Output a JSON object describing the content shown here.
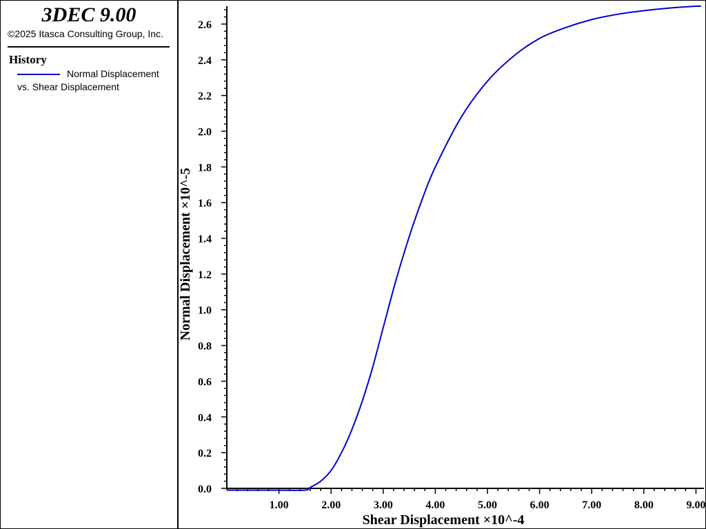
{
  "app": {
    "title": "3DEC 9.00",
    "copyright": "©2025 Itasca Consulting Group, Inc."
  },
  "legend": {
    "heading": "History",
    "entries": [
      {
        "line1": "Normal Displacement",
        "line2": "vs. Shear Displacement",
        "color": "#0000cc"
      }
    ]
  },
  "chart_data": {
    "type": "line",
    "title": "",
    "xlabel": "Shear Displacement ×10^-4",
    "ylabel": "Normal Displacement ×10^-5",
    "xlim": [
      0,
      9.1
    ],
    "ylim": [
      0,
      2.7
    ],
    "x_ticks": [
      "1.00",
      "2.00",
      "3.00",
      "4.00",
      "5.00",
      "6.00",
      "7.00",
      "8.00",
      "9.00"
    ],
    "y_ticks": [
      "0.0",
      "0.2",
      "0.4",
      "0.6",
      "0.8",
      "1.0",
      "1.2",
      "1.4",
      "1.6",
      "1.8",
      "2.0",
      "2.2",
      "2.4",
      "2.6"
    ],
    "grid": false,
    "legend_position": "left panel",
    "series": [
      {
        "name": "Normal Displacement vs. Shear Displacement",
        "color": "#0000cc",
        "x": [
          0.0,
          0.5,
          1.0,
          1.5,
          1.6,
          1.8,
          2.0,
          2.2,
          2.4,
          2.6,
          2.8,
          3.0,
          3.25,
          3.5,
          3.75,
          4.0,
          4.5,
          5.0,
          5.5,
          6.0,
          6.5,
          7.0,
          7.5,
          8.0,
          8.5,
          9.0,
          9.1
        ],
        "y": [
          -0.01,
          -0.01,
          -0.01,
          -0.01,
          0.005,
          0.04,
          0.1,
          0.2,
          0.33,
          0.49,
          0.68,
          0.9,
          1.17,
          1.41,
          1.62,
          1.8,
          2.08,
          2.28,
          2.42,
          2.52,
          2.58,
          2.625,
          2.655,
          2.675,
          2.69,
          2.7,
          2.7
        ]
      }
    ]
  }
}
